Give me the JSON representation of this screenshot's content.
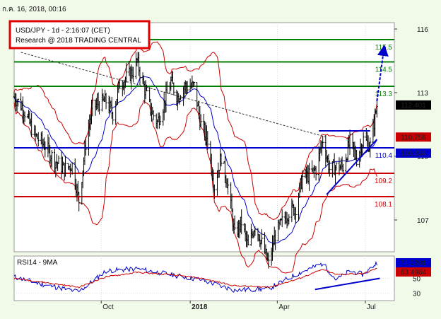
{
  "header": {
    "timestamp": "ก.ค. 16, 2018, 00:16",
    "title_line1": "USD/JPY - 1d - 2:16:07 (CET)",
    "title_line2": "Research @ 2018 TRADING CENTRAL"
  },
  "colors": {
    "background": "#f1f9e9",
    "plot_bg": "#ffffff",
    "resistance": "#008000",
    "support": "#cc0000",
    "pivot": "#0000cc",
    "bollinger": "#cc0000",
    "moving_average": "#0000cc",
    "price_bar": "#000000",
    "title_box": "#e00000",
    "current_price_box": "#000000",
    "pivot_box": "#0000cc",
    "red_box": "#cc0000"
  },
  "chart_data": [
    {
      "type": "ohlc",
      "name": "price-panel",
      "ylim": [
        105.5,
        116.3
      ],
      "y_ticks": [
        107,
        110,
        113,
        116
      ],
      "x_labels": [
        {
          "label": "Oct",
          "date": "2017-10-01"
        },
        {
          "label": "2018",
          "date": "2018-01-01"
        },
        {
          "label": "Apr",
          "date": "2018-04-01"
        },
        {
          "label": "Jul",
          "date": "2018-07-01"
        }
      ],
      "x_range": [
        "2017-07-03",
        "2018-07-31"
      ],
      "close_path": [
        [
          "2017-07-03",
          112.8
        ],
        [
          "2017-07-12",
          112.3
        ],
        [
          "2017-07-24",
          111.0
        ],
        [
          "2017-08-04",
          110.5
        ],
        [
          "2017-08-14",
          109.8
        ],
        [
          "2017-08-24",
          109.4
        ],
        [
          "2017-09-01",
          109.6
        ],
        [
          "2017-09-08",
          107.9
        ],
        [
          "2017-09-15",
          110.6
        ],
        [
          "2017-09-22",
          112.3
        ],
        [
          "2017-09-29",
          112.5
        ],
        [
          "2017-10-06",
          112.6
        ],
        [
          "2017-10-13",
          112.0
        ],
        [
          "2017-10-20",
          113.4
        ],
        [
          "2017-10-27",
          113.7
        ],
        [
          "2017-11-03",
          114.0
        ],
        [
          "2017-11-07",
          114.5
        ],
        [
          "2017-11-14",
          113.3
        ],
        [
          "2017-11-22",
          112.1
        ],
        [
          "2017-11-28",
          111.6
        ],
        [
          "2017-12-05",
          112.5
        ],
        [
          "2017-12-12",
          113.5
        ],
        [
          "2017-12-19",
          112.8
        ],
        [
          "2017-12-26",
          113.3
        ],
        [
          "2018-01-05",
          113.3
        ],
        [
          "2018-01-12",
          111.5
        ],
        [
          "2018-01-19",
          110.8
        ],
        [
          "2018-01-26",
          108.6
        ],
        [
          "2018-02-02",
          110.0
        ],
        [
          "2018-02-09",
          108.6
        ],
        [
          "2018-02-16",
          106.3
        ],
        [
          "2018-02-23",
          106.9
        ],
        [
          "2018-03-02",
          105.7
        ],
        [
          "2018-03-09",
          106.8
        ],
        [
          "2018-03-16",
          105.9
        ],
        [
          "2018-03-23",
          104.9
        ],
        [
          "2018-03-30",
          106.3
        ],
        [
          "2018-04-06",
          106.9
        ],
        [
          "2018-04-13",
          107.4
        ],
        [
          "2018-04-20",
          107.6
        ],
        [
          "2018-04-27",
          109.0
        ],
        [
          "2018-05-04",
          109.1
        ],
        [
          "2018-05-11",
          109.4
        ],
        [
          "2018-05-18",
          110.8
        ],
        [
          "2018-05-25",
          109.4
        ],
        [
          "2018-06-01",
          109.5
        ],
        [
          "2018-06-08",
          109.5
        ],
        [
          "2018-06-15",
          110.7
        ],
        [
          "2018-06-22",
          109.9
        ],
        [
          "2018-06-29",
          110.8
        ],
        [
          "2018-07-06",
          110.5
        ],
        [
          "2018-07-13",
          112.4
        ]
      ],
      "levels": [
        {
          "label": "115.5",
          "value": 115.5,
          "kind": "resistance"
        },
        {
          "label": "114.5",
          "value": 114.45,
          "kind": "resistance"
        },
        {
          "label": "113.3",
          "value": 113.3,
          "kind": "resistance"
        },
        {
          "label": "110.4",
          "value": 110.4,
          "kind": "pivot"
        },
        {
          "label": "109.2",
          "value": 109.2,
          "kind": "support"
        },
        {
          "label": "108.1",
          "value": 108.1,
          "kind": "support"
        }
      ],
      "price_labels": [
        {
          "label": "112.401",
          "value": 112.401,
          "style": "current"
        },
        {
          "label": "110.758",
          "value": 110.758,
          "style": "red"
        },
        {
          "label": "110.234",
          "value": 110.234,
          "style": "pivot"
        }
      ],
      "trendlines": [
        {
          "kind": "dashed-downtrend",
          "from": [
            "2017-07-10",
            114.9
          ],
          "to": [
            "2018-05-22",
            110.9
          ]
        },
        {
          "kind": "rising-support",
          "from": [
            "2018-05-22",
            108.2
          ],
          "to": [
            "2018-07-13",
            110.8
          ]
        },
        {
          "kind": "range-top",
          "from": [
            "2018-05-14",
            111.2
          ],
          "to": [
            "2018-07-06",
            111.2
          ]
        }
      ],
      "projection": {
        "from": [
          "2018-07-13",
          112.6
        ],
        "to": [
          "2018-07-20",
          115.0
        ]
      }
    },
    {
      "type": "line",
      "name": "rsi-panel",
      "title": "RSI14 - 9MA",
      "ylim": [
        20,
        80
      ],
      "y_ticks": [
        30,
        50
      ],
      "series": [
        {
          "name": "RSI14",
          "value_label": "71.0201"
        },
        {
          "name": "9MA",
          "value_label": "63.4984"
        }
      ],
      "rsi_path": [
        [
          "2017-07-03",
          52
        ],
        [
          "2017-08-01",
          42
        ],
        [
          "2017-09-08",
          32
        ],
        [
          "2017-10-06",
          60
        ],
        [
          "2017-11-07",
          63
        ],
        [
          "2017-12-12",
          55
        ],
        [
          "2018-01-12",
          48
        ],
        [
          "2018-02-16",
          34
        ],
        [
          "2018-03-23",
          36
        ],
        [
          "2018-04-20",
          55
        ],
        [
          "2018-05-18",
          70
        ],
        [
          "2018-06-01",
          48
        ],
        [
          "2018-06-15",
          60
        ],
        [
          "2018-06-29",
          55
        ],
        [
          "2018-07-13",
          71
        ]
      ],
      "ma_path": [
        [
          "2017-07-03",
          50
        ],
        [
          "2017-08-01",
          45
        ],
        [
          "2017-09-08",
          38
        ],
        [
          "2017-10-06",
          52
        ],
        [
          "2017-11-07",
          58
        ],
        [
          "2017-12-12",
          55
        ],
        [
          "2018-01-12",
          50
        ],
        [
          "2018-02-16",
          40
        ],
        [
          "2018-03-23",
          38
        ],
        [
          "2018-04-20",
          48
        ],
        [
          "2018-05-18",
          62
        ],
        [
          "2018-06-01",
          55
        ],
        [
          "2018-06-15",
          56
        ],
        [
          "2018-06-29",
          56
        ],
        [
          "2018-07-13",
          63.5
        ]
      ],
      "trendline": {
        "from": [
          "2018-05-10",
          35
        ],
        "to": [
          "2018-07-16",
          50
        ]
      }
    }
  ]
}
